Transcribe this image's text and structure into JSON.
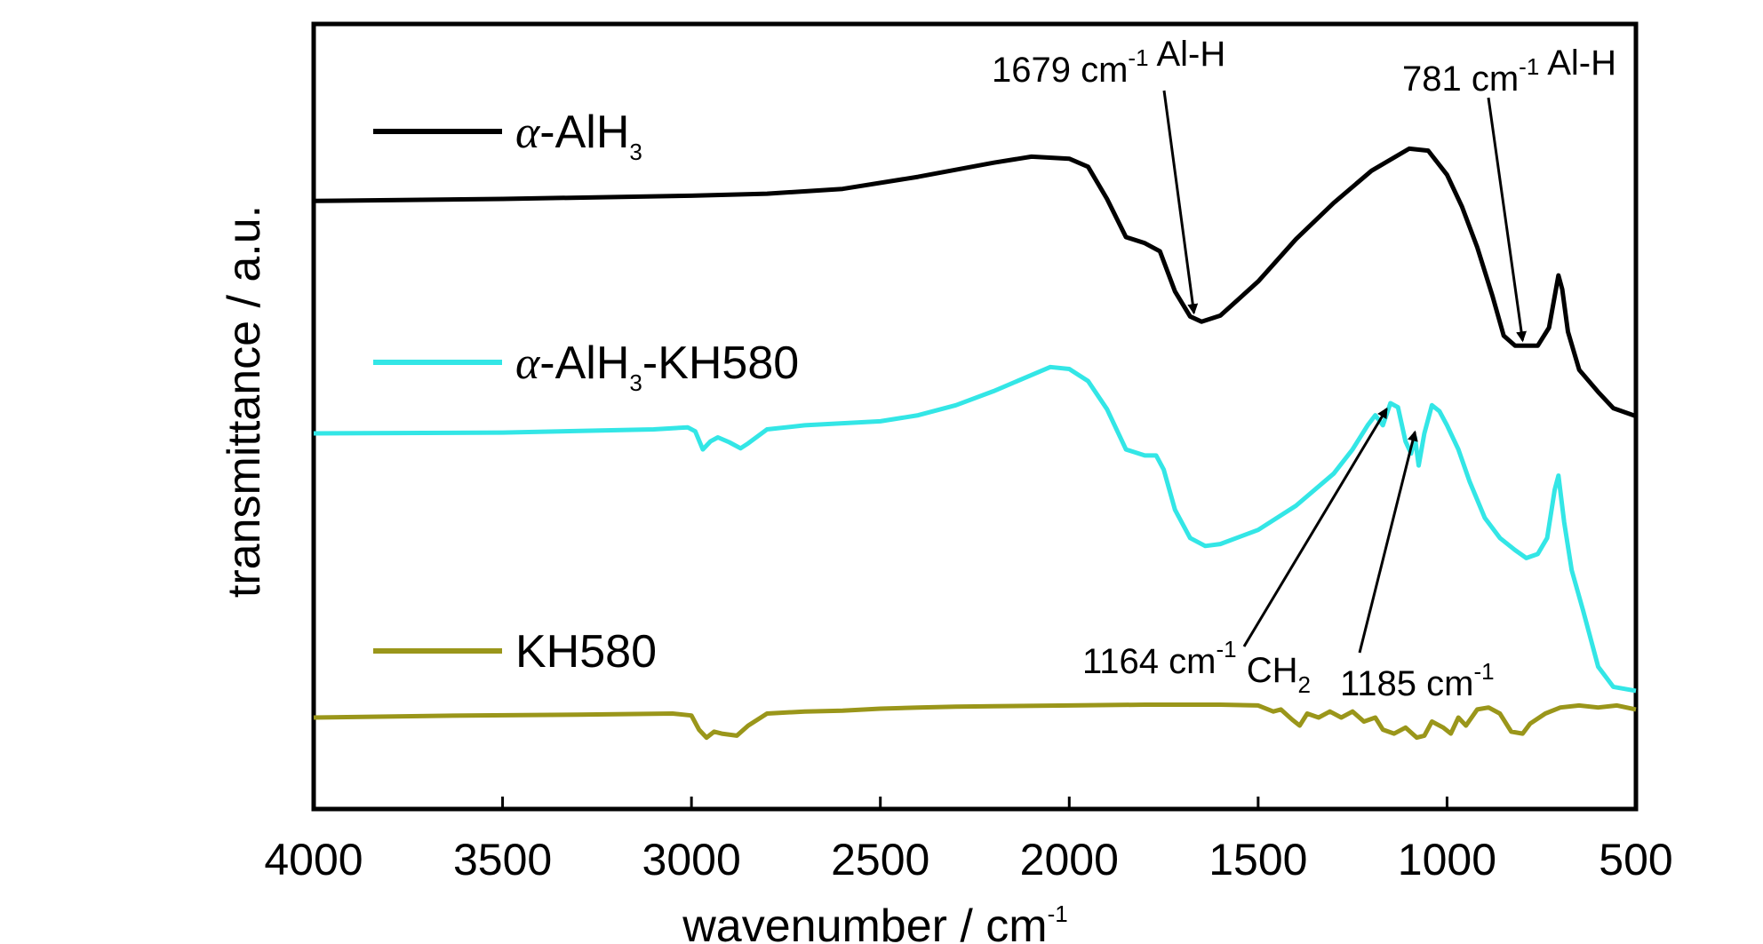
{
  "chart_data": {
    "type": "line",
    "xlabel": "wavenumber / cm",
    "xlabel_sup": "-1",
    "ylabel": "transmittance / a.u.",
    "xlim": [
      4000,
      500
    ],
    "x_reversed": true,
    "y_ticks_shown": false,
    "x_ticks": [
      4000,
      3500,
      3000,
      2500,
      2000,
      1500,
      1000,
      500
    ],
    "legend_position": "left",
    "series": [
      {
        "key": "alh3",
        "name_prefix": "α",
        "name_main": "-AlH",
        "name_sub": "3",
        "name_tail": "",
        "color": "#000000",
        "points": [
          [
            4000,
            0.695
          ],
          [
            3500,
            0.7
          ],
          [
            3000,
            0.708
          ],
          [
            2800,
            0.713
          ],
          [
            2600,
            0.725
          ],
          [
            2400,
            0.755
          ],
          [
            2200,
            0.79
          ],
          [
            2100,
            0.805
          ],
          [
            2000,
            0.8
          ],
          [
            1950,
            0.78
          ],
          [
            1900,
            0.7
          ],
          [
            1850,
            0.605
          ],
          [
            1800,
            0.59
          ],
          [
            1760,
            0.57
          ],
          [
            1720,
            0.47
          ],
          [
            1680,
            0.408
          ],
          [
            1650,
            0.395
          ],
          [
            1600,
            0.41
          ],
          [
            1500,
            0.495
          ],
          [
            1400,
            0.6
          ],
          [
            1300,
            0.69
          ],
          [
            1200,
            0.77
          ],
          [
            1100,
            0.825
          ],
          [
            1050,
            0.82
          ],
          [
            1000,
            0.76
          ],
          [
            960,
            0.68
          ],
          [
            920,
            0.58
          ],
          [
            880,
            0.46
          ],
          [
            850,
            0.36
          ],
          [
            820,
            0.335
          ],
          [
            790,
            0.335
          ],
          [
            760,
            0.335
          ],
          [
            730,
            0.38
          ],
          [
            705,
            0.51
          ],
          [
            695,
            0.475
          ],
          [
            680,
            0.37
          ],
          [
            650,
            0.275
          ],
          [
            600,
            0.22
          ],
          [
            560,
            0.18
          ],
          [
            500,
            0.16
          ]
        ]
      },
      {
        "key": "alh3kh",
        "name_prefix": "α",
        "name_main": "-AlH",
        "name_sub": "3",
        "name_tail": "-KH580",
        "color": "#33e6e6",
        "points": [
          [
            4000,
            0.34
          ],
          [
            3500,
            0.342
          ],
          [
            3100,
            0.35
          ],
          [
            3010,
            0.355
          ],
          [
            2990,
            0.345
          ],
          [
            2970,
            0.3
          ],
          [
            2950,
            0.32
          ],
          [
            2930,
            0.33
          ],
          [
            2900,
            0.318
          ],
          [
            2870,
            0.303
          ],
          [
            2850,
            0.315
          ],
          [
            2800,
            0.35
          ],
          [
            2700,
            0.36
          ],
          [
            2500,
            0.37
          ],
          [
            2400,
            0.385
          ],
          [
            2300,
            0.41
          ],
          [
            2200,
            0.445
          ],
          [
            2100,
            0.485
          ],
          [
            2050,
            0.505
          ],
          [
            2000,
            0.5
          ],
          [
            1950,
            0.47
          ],
          [
            1900,
            0.4
          ],
          [
            1850,
            0.3
          ],
          [
            1800,
            0.285
          ],
          [
            1770,
            0.285
          ],
          [
            1750,
            0.25
          ],
          [
            1720,
            0.15
          ],
          [
            1680,
            0.08
          ],
          [
            1640,
            0.06
          ],
          [
            1600,
            0.065
          ],
          [
            1500,
            0.1
          ],
          [
            1400,
            0.16
          ],
          [
            1300,
            0.24
          ],
          [
            1250,
            0.3
          ],
          [
            1210,
            0.36
          ],
          [
            1190,
            0.385
          ],
          [
            1170,
            0.36
          ],
          [
            1150,
            0.415
          ],
          [
            1130,
            0.405
          ],
          [
            1110,
            0.32
          ],
          [
            1095,
            0.29
          ],
          [
            1085,
            0.33
          ],
          [
            1075,
            0.26
          ],
          [
            1060,
            0.34
          ],
          [
            1040,
            0.41
          ],
          [
            1020,
            0.395
          ],
          [
            1000,
            0.36
          ],
          [
            970,
            0.3
          ],
          [
            940,
            0.22
          ],
          [
            900,
            0.13
          ],
          [
            860,
            0.08
          ],
          [
            820,
            0.05
          ],
          [
            790,
            0.03
          ],
          [
            760,
            0.04
          ],
          [
            735,
            0.08
          ],
          [
            715,
            0.2
          ],
          [
            705,
            0.235
          ],
          [
            690,
            0.12
          ],
          [
            670,
            0.0
          ],
          [
            640,
            -0.1
          ],
          [
            600,
            -0.24
          ],
          [
            560,
            -0.29
          ],
          [
            500,
            -0.3
          ]
        ]
      },
      {
        "key": "kh580",
        "name_prefix": "",
        "name_main": "KH580",
        "name_sub": "",
        "name_tail": "",
        "color": "#9a961a",
        "points": [
          [
            4000,
            -0.16
          ],
          [
            3600,
            -0.155
          ],
          [
            3300,
            -0.153
          ],
          [
            3050,
            -0.15
          ],
          [
            3000,
            -0.155
          ],
          [
            2980,
            -0.19
          ],
          [
            2960,
            -0.21
          ],
          [
            2940,
            -0.195
          ],
          [
            2920,
            -0.2
          ],
          [
            2880,
            -0.205
          ],
          [
            2850,
            -0.18
          ],
          [
            2800,
            -0.15
          ],
          [
            2700,
            -0.145
          ],
          [
            2600,
            -0.143
          ],
          [
            2500,
            -0.138
          ],
          [
            2400,
            -0.135
          ],
          [
            2300,
            -0.133
          ],
          [
            2200,
            -0.132
          ],
          [
            2000,
            -0.13
          ],
          [
            1800,
            -0.128
          ],
          [
            1600,
            -0.128
          ],
          [
            1500,
            -0.13
          ],
          [
            1460,
            -0.145
          ],
          [
            1440,
            -0.14
          ],
          [
            1410,
            -0.165
          ],
          [
            1390,
            -0.18
          ],
          [
            1370,
            -0.15
          ],
          [
            1340,
            -0.16
          ],
          [
            1310,
            -0.145
          ],
          [
            1280,
            -0.16
          ],
          [
            1250,
            -0.145
          ],
          [
            1220,
            -0.17
          ],
          [
            1190,
            -0.16
          ],
          [
            1170,
            -0.19
          ],
          [
            1140,
            -0.2
          ],
          [
            1110,
            -0.185
          ],
          [
            1080,
            -0.21
          ],
          [
            1060,
            -0.205
          ],
          [
            1040,
            -0.17
          ],
          [
            1010,
            -0.185
          ],
          [
            990,
            -0.2
          ],
          [
            970,
            -0.16
          ],
          [
            950,
            -0.18
          ],
          [
            920,
            -0.14
          ],
          [
            890,
            -0.135
          ],
          [
            860,
            -0.15
          ],
          [
            830,
            -0.195
          ],
          [
            800,
            -0.2
          ],
          [
            780,
            -0.175
          ],
          [
            740,
            -0.15
          ],
          [
            700,
            -0.135
          ],
          [
            650,
            -0.13
          ],
          [
            600,
            -0.135
          ],
          [
            550,
            -0.13
          ],
          [
            500,
            -0.14
          ]
        ]
      }
    ],
    "annotations": [
      {
        "value": "1679 cm",
        "sup": "-1",
        "tail": " Al-H",
        "sub": "",
        "tail2": "",
        "arrow_x_data": 1670,
        "arrow_to_series": "alh3"
      },
      {
        "value": "781 cm",
        "sup": "-1",
        "tail": " Al-H",
        "sub": "",
        "tail2": "",
        "arrow_x_data": 800,
        "arrow_to_series": "alh3"
      },
      {
        "value": "1164 cm",
        "sup": "-1",
        "tail": " CH",
        "sub": "2",
        "tail2": "",
        "arrow_x_data": 1160,
        "arrow_to_series": "alh3kh"
      },
      {
        "value": "1185 cm",
        "sup": "-1",
        "tail": "",
        "sub": "",
        "tail2": "",
        "arrow_x_data": 1085,
        "arrow_to_series": "alh3kh"
      }
    ]
  }
}
